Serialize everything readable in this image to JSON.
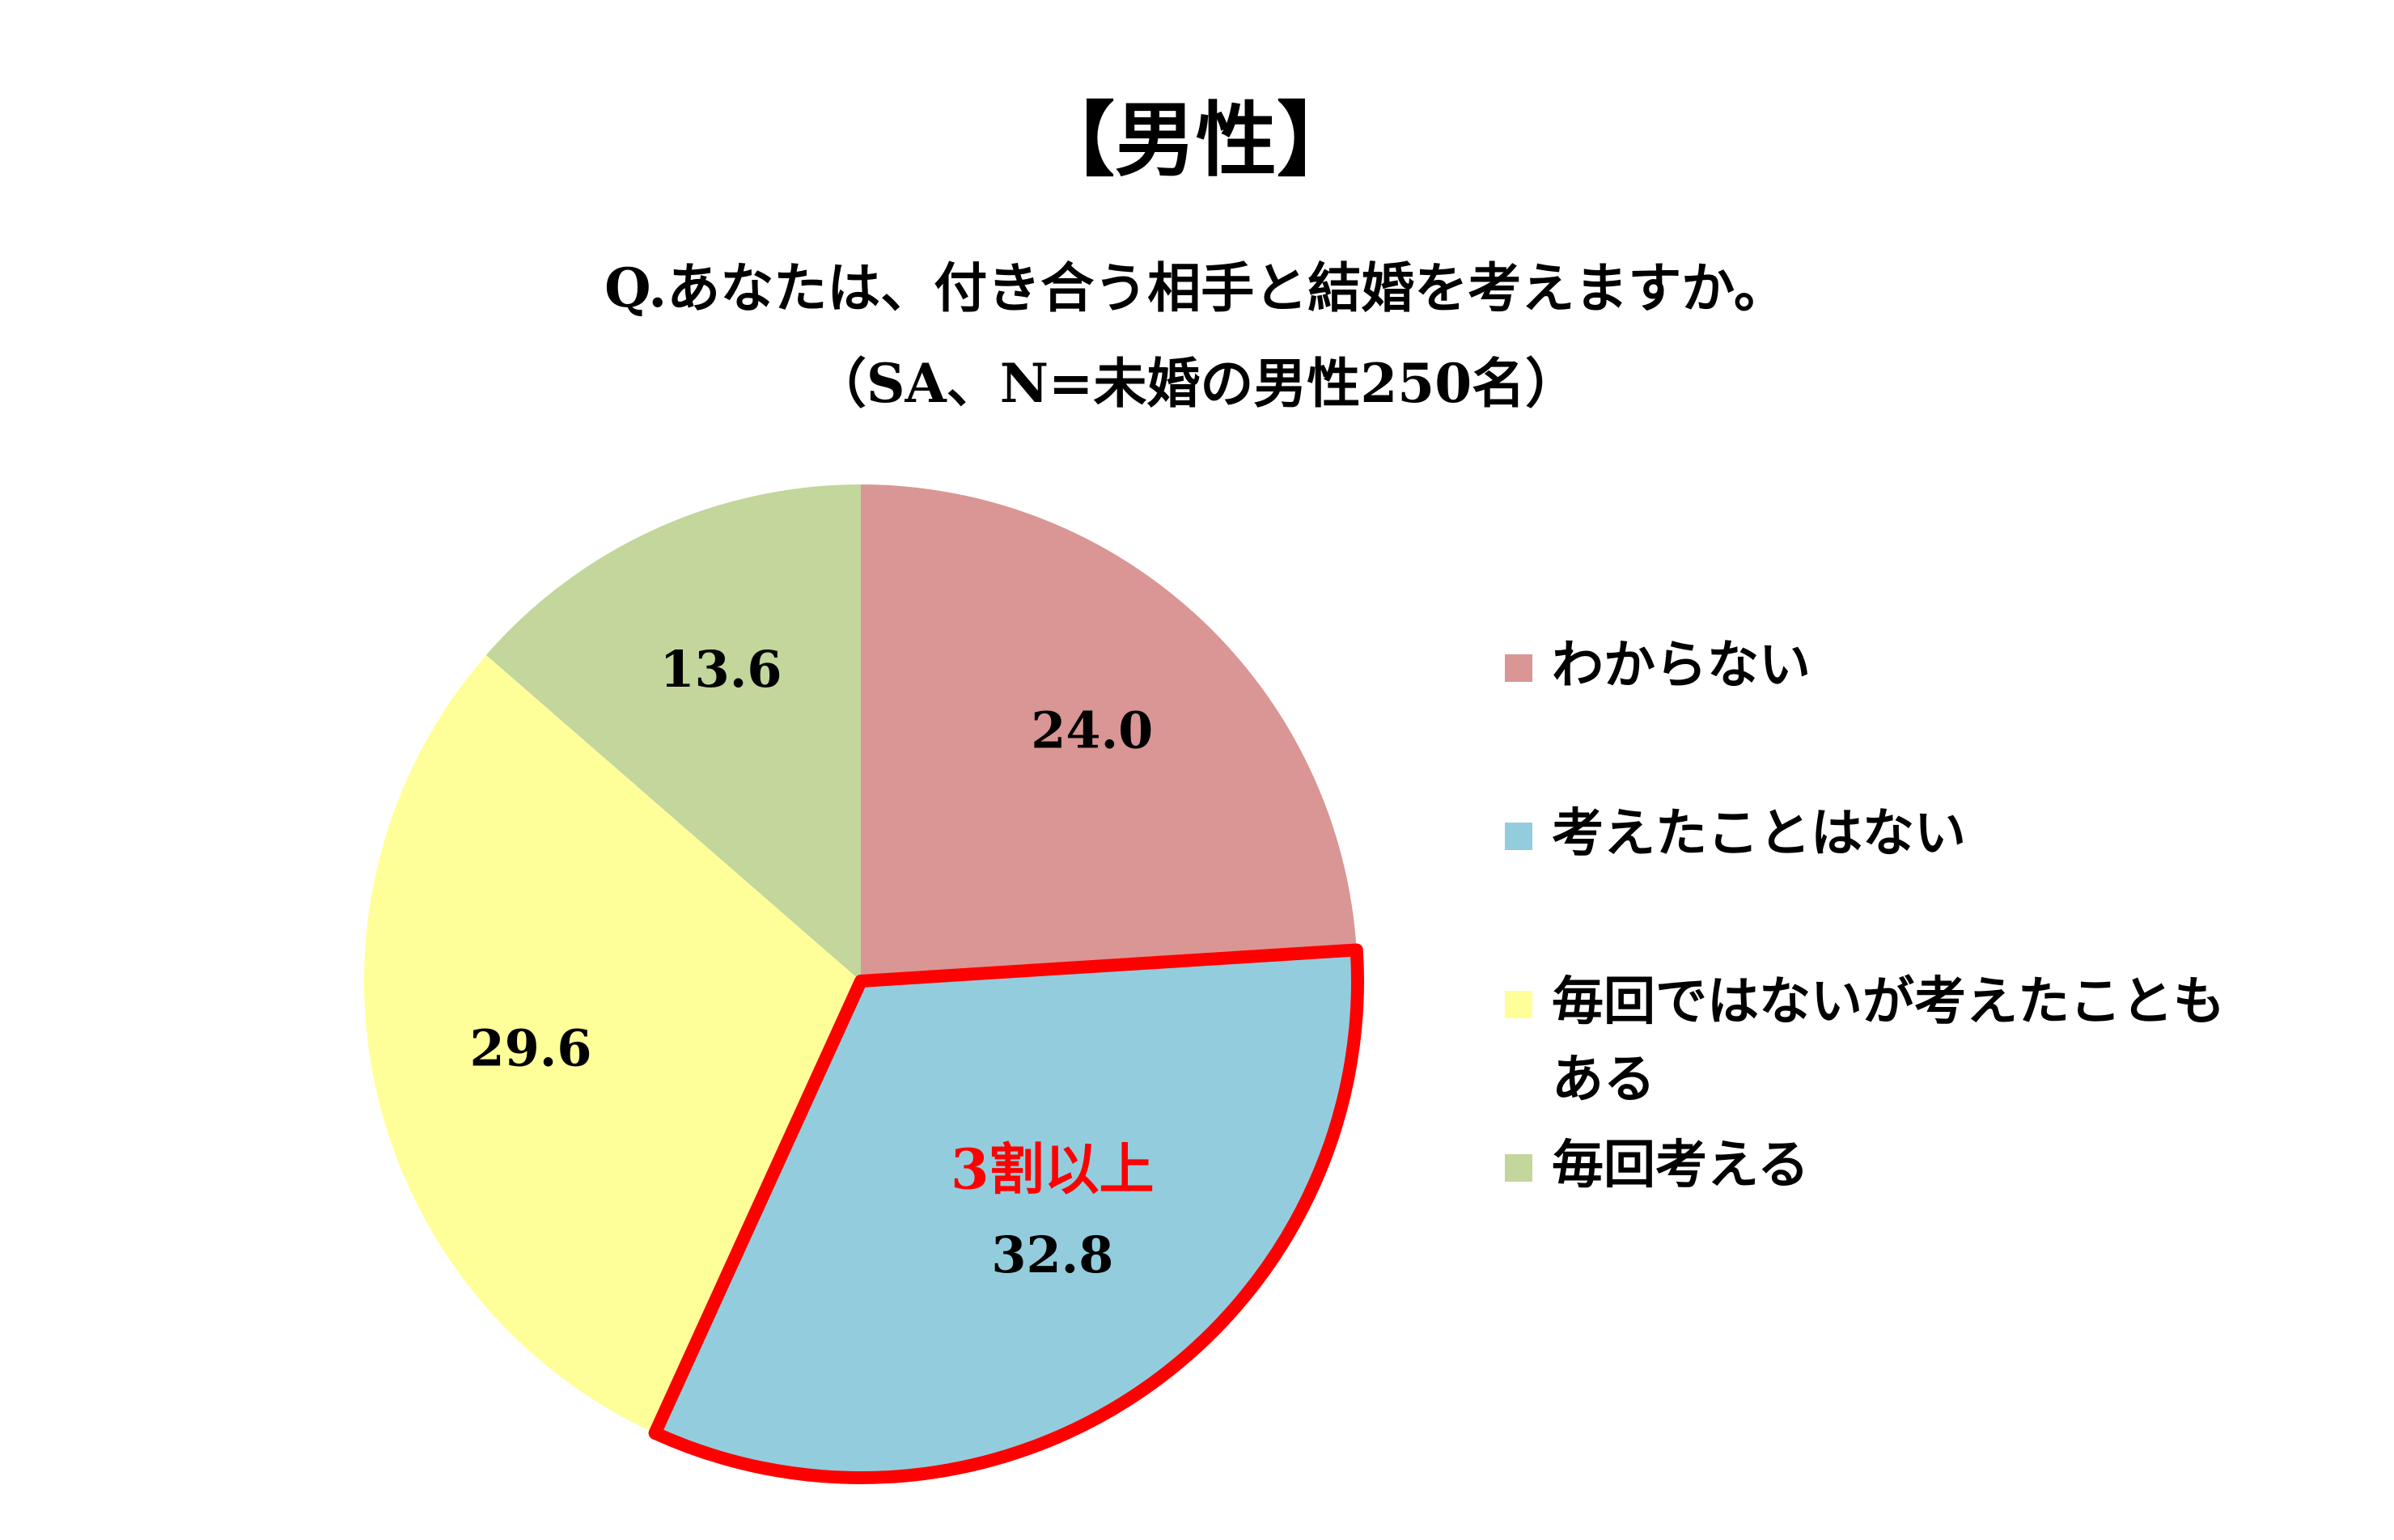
{
  "chart_data": {
    "type": "pie",
    "title": "【男性】",
    "subtitle": [
      "Q.あなたは、付き合う相手と結婚を考えますか。",
      "（SA、N=未婚の男性250名）"
    ],
    "categories": [
      "わからない",
      "考えたことはない",
      "毎回ではないが考えたこともある",
      "毎回考える"
    ],
    "values": [
      24.0,
      32.8,
      29.6,
      13.6
    ],
    "value_labels": [
      "24.0",
      "32.8",
      "29.6",
      "13.6"
    ],
    "colors": [
      "#d99694",
      "#93cddd",
      "#ffff99",
      "#c3d69b"
    ],
    "annotation": "3割以上",
    "highlight": 1,
    "highlight_color": "#ff0000",
    "legend": "right"
  }
}
